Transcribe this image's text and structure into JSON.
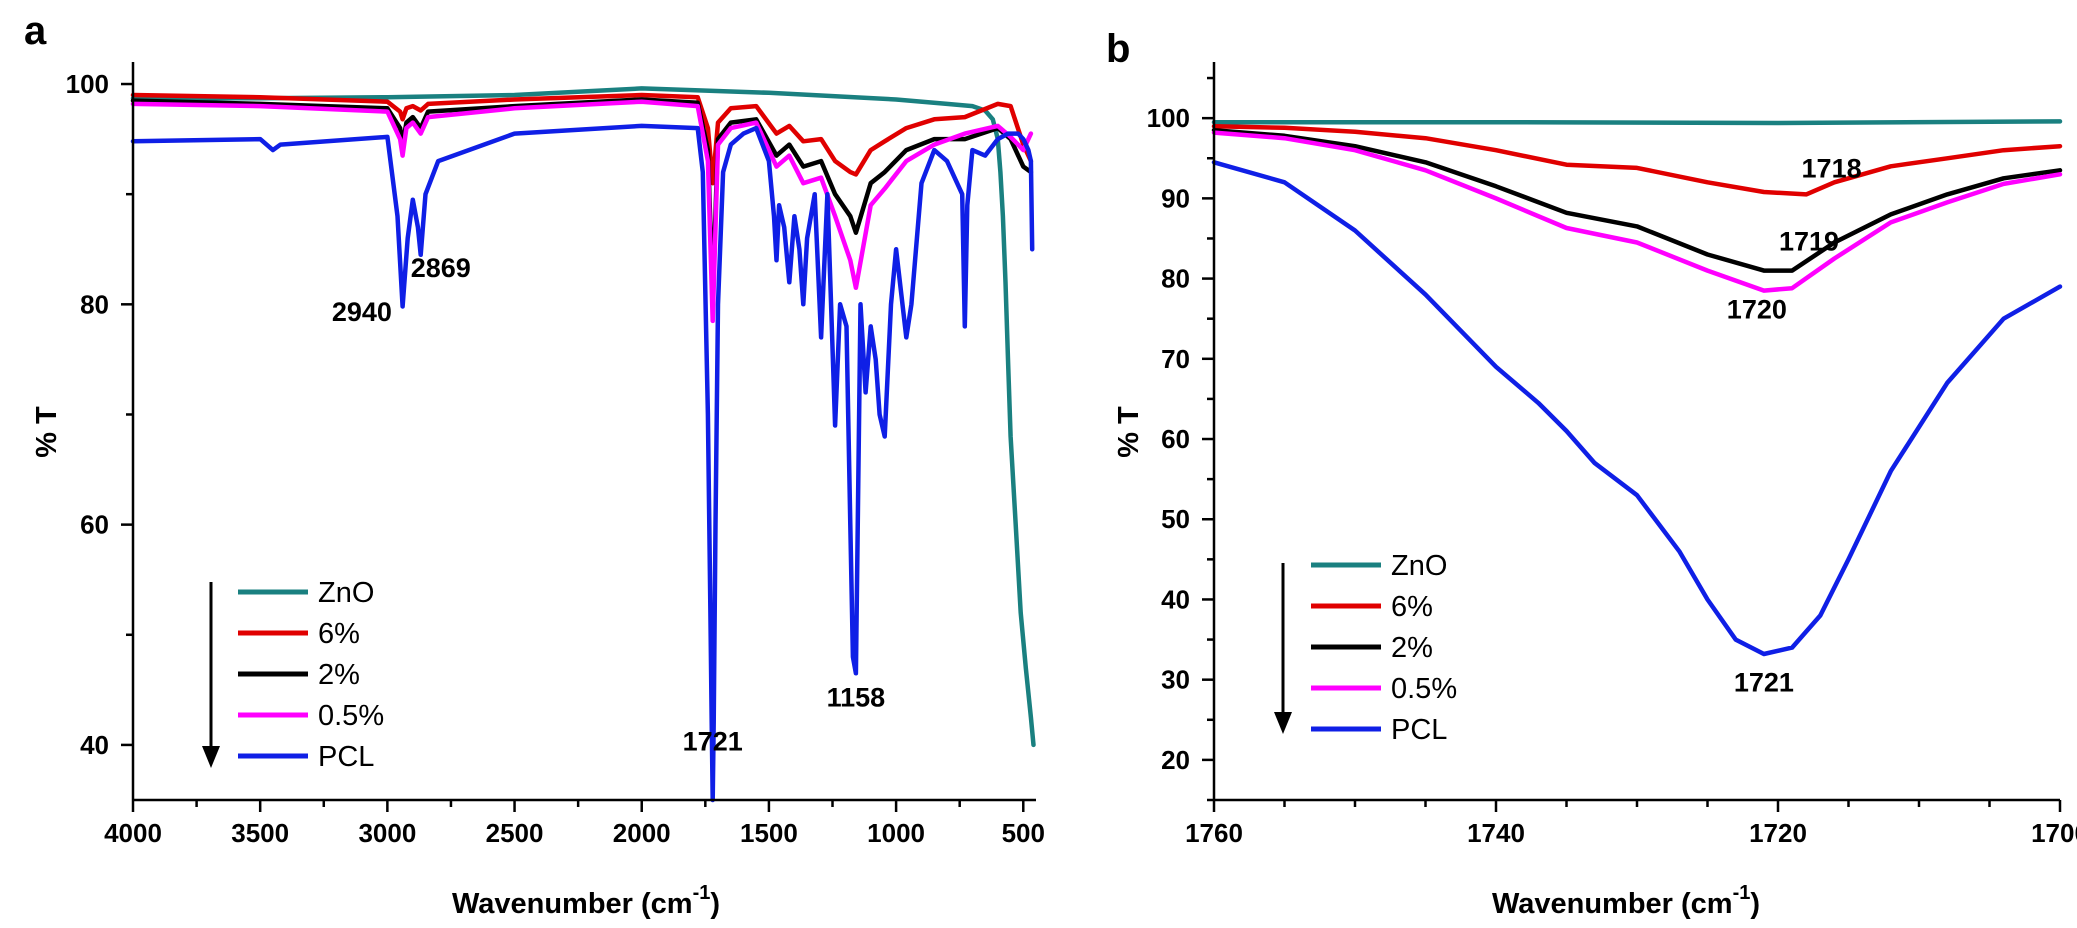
{
  "chart_data": [
    {
      "panel": "a",
      "type": "line",
      "xlabel": "Wavenumber (cm",
      "xlabel_sup": "-1",
      "xlabel_suffix": ")",
      "ylabel": "% T",
      "xlim": [
        4000,
        450
      ],
      "ylim": [
        35,
        102
      ],
      "xticks": [
        "4000",
        "3500",
        "3000",
        "2500",
        "2000",
        "1500",
        "1000",
        "500"
      ],
      "yticks": [
        "40",
        "60",
        "80",
        "100"
      ],
      "legend": [
        "ZnO",
        "6%",
        "2%",
        "0.5%",
        "PCL"
      ],
      "legend_placement": "bottom-left",
      "annotations": [
        {
          "text": "2940",
          "x": 3100,
          "y": 78.5
        },
        {
          "text": "2869",
          "x": 2790,
          "y": 82.5
        },
        {
          "text": "1721",
          "x": 1721,
          "y": 39.5
        },
        {
          "text": "1158",
          "x": 1158,
          "y": 43.5
        }
      ],
      "series": [
        {
          "name": "ZnO",
          "color": "#1a8080",
          "x": [
            4000,
            3500,
            3000,
            2500,
            2000,
            1500,
            1000,
            800,
            700,
            650,
            620,
            600,
            590,
            580,
            570,
            560,
            550,
            530,
            510,
            490,
            470,
            460
          ],
          "y": [
            98.7,
            98.7,
            98.8,
            99.0,
            99.6,
            99.2,
            98.6,
            98.2,
            98.0,
            97.6,
            96.8,
            95.0,
            92.0,
            88.0,
            82.0,
            75.0,
            68.0,
            60.0,
            52.0,
            47.0,
            42.5,
            40.0
          ]
        },
        {
          "name": "6%",
          "color": "#e00000",
          "x": [
            4000,
            3500,
            3000,
            2950,
            2940,
            2925,
            2900,
            2869,
            2840,
            2500,
            2000,
            1780,
            1740,
            1721,
            1700,
            1650,
            1550,
            1470,
            1420,
            1365,
            1295,
            1240,
            1180,
            1158,
            1100,
            1045,
            960,
            850,
            730,
            600,
            550,
            500,
            470
          ],
          "y": [
            99.0,
            98.8,
            98.4,
            97.5,
            96.8,
            97.8,
            98.0,
            97.6,
            98.2,
            98.6,
            99.0,
            98.8,
            96.0,
            91.0,
            96.5,
            97.8,
            98.0,
            95.5,
            96.2,
            94.8,
            95.0,
            93.0,
            92.0,
            91.8,
            94.0,
            94.8,
            96.0,
            96.8,
            97.0,
            98.2,
            98.0,
            94.5,
            93.0
          ]
        },
        {
          "name": "2%",
          "color": "#000000",
          "x": [
            4000,
            3500,
            3000,
            2950,
            2940,
            2925,
            2900,
            2869,
            2840,
            2500,
            2000,
            1780,
            1740,
            1721,
            1700,
            1650,
            1550,
            1470,
            1420,
            1365,
            1295,
            1240,
            1180,
            1158,
            1100,
            1045,
            960,
            850,
            730,
            600,
            550,
            500,
            470
          ],
          "y": [
            98.5,
            98.2,
            97.8,
            96.0,
            94.5,
            96.5,
            97.0,
            96.0,
            97.5,
            98.0,
            98.6,
            98.3,
            94.0,
            80.8,
            95.0,
            96.5,
            96.8,
            93.5,
            94.5,
            92.5,
            93.0,
            90.0,
            88.0,
            86.5,
            91.0,
            92.0,
            94.0,
            95.0,
            95.0,
            96.0,
            95.0,
            92.5,
            92.0
          ]
        },
        {
          "name": "0.5%",
          "color": "#ff00ff",
          "x": [
            4000,
            3500,
            3000,
            2950,
            2940,
            2925,
            2900,
            2869,
            2840,
            2500,
            2000,
            1780,
            1740,
            1721,
            1700,
            1650,
            1550,
            1470,
            1420,
            1365,
            1295,
            1240,
            1180,
            1158,
            1100,
            1045,
            960,
            850,
            730,
            600,
            550,
            500,
            470
          ],
          "y": [
            98.2,
            98.0,
            97.5,
            95.0,
            93.5,
            96.0,
            96.5,
            95.5,
            97.0,
            97.8,
            98.4,
            98.0,
            93.0,
            78.5,
            94.5,
            96.0,
            96.5,
            92.5,
            93.5,
            91.0,
            91.5,
            88.0,
            84.0,
            81.5,
            89.0,
            90.5,
            93.0,
            94.5,
            95.5,
            96.2,
            95.2,
            94.0,
            95.5
          ]
        },
        {
          "name": "PCL",
          "color": "#0f1fe6",
          "x": [
            4000,
            3500,
            3450,
            3420,
            3000,
            2960,
            2940,
            2920,
            2900,
            2880,
            2869,
            2850,
            2800,
            2500,
            2000,
            1780,
            1760,
            1740,
            1730,
            1725,
            1721,
            1717,
            1710,
            1700,
            1680,
            1650,
            1600,
            1550,
            1500,
            1480,
            1470,
            1460,
            1440,
            1420,
            1400,
            1380,
            1365,
            1350,
            1320,
            1295,
            1270,
            1240,
            1220,
            1195,
            1180,
            1170,
            1158,
            1140,
            1120,
            1100,
            1080,
            1065,
            1045,
            1020,
            1000,
            960,
            940,
            900,
            850,
            800,
            740,
            730,
            720,
            700,
            650,
            600,
            560,
            520,
            500,
            480,
            470,
            465
          ],
          "y": [
            94.8,
            95.0,
            94.0,
            94.5,
            95.2,
            88.0,
            79.8,
            86.0,
            89.5,
            87.0,
            84.5,
            90.0,
            93.0,
            95.5,
            96.2,
            96.0,
            92.0,
            70.0,
            52.0,
            42.0,
            35.0,
            42.0,
            60.0,
            80.0,
            92.0,
            94.5,
            95.5,
            96.0,
            93.0,
            88.0,
            84.0,
            89.0,
            87.0,
            82.0,
            88.0,
            85.0,
            80.0,
            86.0,
            90.0,
            77.0,
            90.0,
            69.0,
            80.0,
            78.0,
            60.0,
            48.0,
            46.5,
            80.0,
            72.0,
            78.0,
            75.0,
            70.0,
            68.0,
            80.0,
            85.0,
            77.0,
            80.0,
            91.0,
            94.0,
            93.0,
            90.0,
            78.0,
            89.0,
            94.0,
            93.5,
            95.0,
            95.5,
            95.5,
            95.0,
            94.0,
            93.0,
            85.0
          ]
        }
      ]
    },
    {
      "panel": "b",
      "type": "line",
      "xlabel": "Wavenumber (cm",
      "xlabel_sup": "-1",
      "xlabel_suffix": ")",
      "ylabel": "% T",
      "xlim": [
        1760,
        1700
      ],
      "ylim": [
        15,
        107
      ],
      "xticks": [
        "1760",
        "1740",
        "1720",
        "1700"
      ],
      "yticks": [
        "20",
        "30",
        "40",
        "50",
        "60",
        "70",
        "80",
        "90",
        "100"
      ],
      "legend": [
        "ZnO",
        "6%",
        "2%",
        "0.5%",
        "PCL"
      ],
      "legend_placement": "bottom-left",
      "annotations": [
        {
          "text": "1718",
          "x": 1716.2,
          "y": 92.6
        },
        {
          "text": "1719",
          "x": 1717.8,
          "y": 83.5
        },
        {
          "text": "1720",
          "x": 1721.5,
          "y": 75.0
        },
        {
          "text": "1721",
          "x": 1721,
          "y": 28.5
        }
      ],
      "series": [
        {
          "name": "ZnO",
          "color": "#1a8080",
          "x": [
            1760,
            1740,
            1720,
            1700
          ],
          "y": [
            99.5,
            99.5,
            99.4,
            99.6
          ]
        },
        {
          "name": "6%",
          "color": "#e00000",
          "x": [
            1760,
            1755,
            1750,
            1745,
            1740,
            1735,
            1730,
            1725,
            1721,
            1718,
            1716,
            1712,
            1708,
            1704,
            1700
          ],
          "y": [
            99.0,
            98.8,
            98.3,
            97.5,
            96.0,
            94.2,
            93.8,
            92.0,
            90.8,
            90.5,
            92.0,
            94.0,
            95.0,
            96.0,
            96.5
          ]
        },
        {
          "name": "2%",
          "color": "#000000",
          "x": [
            1760,
            1755,
            1750,
            1745,
            1740,
            1735,
            1730,
            1725,
            1721,
            1719,
            1716,
            1712,
            1708,
            1704,
            1700
          ],
          "y": [
            98.5,
            97.8,
            96.5,
            94.5,
            91.5,
            88.2,
            86.5,
            83.0,
            81.0,
            81.0,
            84.5,
            88.0,
            90.5,
            92.5,
            93.5
          ]
        },
        {
          "name": "0.5%",
          "color": "#ff00ff",
          "x": [
            1760,
            1755,
            1750,
            1745,
            1740,
            1735,
            1730,
            1725,
            1721,
            1719,
            1716,
            1712,
            1708,
            1704,
            1700
          ],
          "y": [
            98.2,
            97.5,
            96.0,
            93.5,
            90.0,
            86.3,
            84.5,
            81.0,
            78.5,
            78.8,
            82.5,
            87.0,
            89.5,
            91.8,
            93.0
          ]
        },
        {
          "name": "PCL",
          "color": "#0f1fe6",
          "x": [
            1760,
            1755,
            1750,
            1745,
            1740,
            1737,
            1735,
            1733,
            1730,
            1727,
            1725,
            1723,
            1721,
            1719,
            1717,
            1715,
            1712,
            1708,
            1704,
            1700
          ],
          "y": [
            94.5,
            92.0,
            86.0,
            78.0,
            69.0,
            64.5,
            61.0,
            57.0,
            53.0,
            46.0,
            40.0,
            35.0,
            33.2,
            34.0,
            38.0,
            45.0,
            56.0,
            67.0,
            75.0,
            79.0
          ]
        }
      ]
    }
  ]
}
